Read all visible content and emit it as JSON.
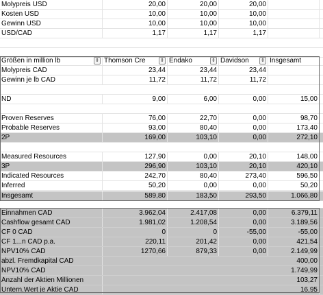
{
  "top_rows": [
    {
      "label": "Molypreis USD",
      "v": [
        "20,00",
        "20,00",
        "20,00",
        ""
      ]
    },
    {
      "label": "Kosten USD",
      "v": [
        "10,00",
        "10,00",
        "10,00",
        ""
      ]
    },
    {
      "label": "Gewinn USD",
      "v": [
        "10,00",
        "10,00",
        "10,00",
        ""
      ]
    },
    {
      "label": "USD/CAD",
      "v": [
        "1,17",
        "1,17",
        "1,17",
        ""
      ]
    }
  ],
  "header": {
    "label": "Größen in million lb",
    "cols": [
      "Thomson Cre",
      "Endako",
      "Davidson",
      "Insgesamt"
    ],
    "dropdown_glyph": "⇕"
  },
  "main_rows": [
    {
      "label": "Molypreis CAD",
      "v": [
        "23,44",
        "23,44",
        "23,44",
        ""
      ]
    },
    {
      "label": "Gewinn je lb CAD",
      "v": [
        "11,72",
        "11,72",
        "11,72",
        ""
      ]
    },
    {
      "label": "",
      "v": [
        "",
        "",
        "",
        ""
      ]
    },
    {
      "label": "ND",
      "v": [
        "9,00",
        "6,00",
        "0,00",
        "15,00"
      ]
    },
    {
      "label": "",
      "v": [
        "",
        "",
        "",
        ""
      ]
    },
    {
      "label": "Proven Reserves",
      "v": [
        "76,00",
        "22,70",
        "0,00",
        "98,70"
      ]
    },
    {
      "label": "Probable Reserves",
      "v": [
        "93,00",
        "80,40",
        "0,00",
        "173,40"
      ]
    },
    {
      "label": "2P",
      "v": [
        "169,00",
        "103,10",
        "0,00",
        "272,10"
      ]
    },
    {
      "label": "",
      "v": [
        "",
        "",
        "",
        ""
      ]
    },
    {
      "label": "Measured Resources",
      "v": [
        "127,90",
        "0,00",
        "20,10",
        "148,00"
      ]
    },
    {
      "label": "3P",
      "v": [
        "296,90",
        "103,10",
        "20,10",
        "420,10"
      ]
    },
    {
      "label": "Indicated Resources",
      "v": [
        "242,70",
        "80,40",
        "273,40",
        "596,50"
      ]
    },
    {
      "label": "Inferred",
      "v": [
        "50,20",
        "0,00",
        "0,00",
        "50,20"
      ]
    },
    {
      "label": "Insgesamt",
      "v": [
        "589,80",
        "183,50",
        "293,50",
        "1.066,80"
      ]
    }
  ],
  "bottom_rows": [
    {
      "label": "Einnahmen CAD",
      "v": [
        "3.962,04",
        "2.417,08",
        "0,00",
        "6.379,11"
      ]
    },
    {
      "label": "Cashflow gesamt CAD",
      "v": [
        "1.981,02",
        "1.208,54",
        "0,00",
        "3.189,56"
      ]
    },
    {
      "label": "CF 0 CAD",
      "v": [
        "0",
        "0",
        "-55,00",
        "-55,00"
      ]
    },
    {
      "label": "CF 1...n CAD p.a.",
      "v": [
        "220,11",
        "201,42",
        "0,00",
        "421,54"
      ]
    },
    {
      "label": "NPV10% CAD",
      "v": [
        "1270,66",
        "879,33",
        "0,00",
        "2.149,99"
      ]
    },
    {
      "label": "abzl. Fremdkapital CAD",
      "v": [
        "",
        "",
        "",
        "400,00"
      ]
    },
    {
      "label": "NPV10% CAD",
      "v": [
        "",
        "",
        "",
        "1.749,99"
      ]
    },
    {
      "label": "Anzahl der Aktien Millionen",
      "v": [
        "",
        "",
        "",
        "103,27"
      ]
    },
    {
      "label": "Untern.Wert je Aktie CAD",
      "v": [
        "",
        "",
        "",
        "16,95"
      ]
    }
  ]
}
